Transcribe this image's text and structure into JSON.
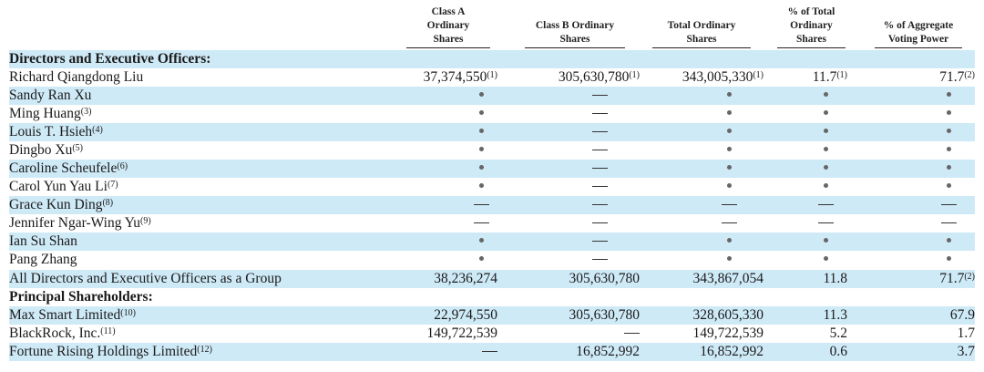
{
  "table": {
    "columns": [
      {
        "key": "class_a",
        "label_lines": [
          "Class A",
          "Ordinary",
          "Shares"
        ]
      },
      {
        "key": "class_b",
        "label_lines": [
          "Class B Ordinary",
          "Shares"
        ]
      },
      {
        "key": "total",
        "label_lines": [
          "Total Ordinary",
          "Shares"
        ]
      },
      {
        "key": "pct_total",
        "label_lines": [
          "% of Total",
          "Ordinary",
          "Shares"
        ]
      },
      {
        "key": "pct_voting",
        "label_lines": [
          "% of Aggregate",
          "Voting Power"
        ]
      }
    ],
    "sections": {
      "directors": "Directors and Executive Officers:",
      "principal": "Principal Shareholders:"
    },
    "rows": [
      {
        "name": "Richard Qiangdong Liu",
        "note": "",
        "class_a": "37,374,550",
        "class_a_note": "(1)",
        "class_b": "305,630,780",
        "class_b_note": "(1)",
        "total": "343,005,330",
        "total_note": "(1)",
        "pct_total": "11.7",
        "pct_total_note": "(1)",
        "pct_voting": "71.7",
        "pct_voting_note": "(2)"
      },
      {
        "name": "Sandy Ran Xu",
        "note": "",
        "class_a": "*",
        "class_b": "—",
        "total": "*",
        "pct_total": "*",
        "pct_voting": "*"
      },
      {
        "name": "Ming Huang",
        "note": "(3)",
        "class_a": "*",
        "class_b": "—",
        "total": "*",
        "pct_total": "*",
        "pct_voting": "*"
      },
      {
        "name": "Louis T. Hsieh",
        "note": "(4)",
        "class_a": "*",
        "class_b": "—",
        "total": "*",
        "pct_total": "*",
        "pct_voting": "*"
      },
      {
        "name": "Dingbo Xu",
        "note": "(5)",
        "class_a": "*",
        "class_b": "—",
        "total": "*",
        "pct_total": "*",
        "pct_voting": "*"
      },
      {
        "name": "Caroline Scheufele",
        "note": "(6)",
        "class_a": "*",
        "class_b": "—",
        "total": "*",
        "pct_total": "*",
        "pct_voting": "*"
      },
      {
        "name": "Carol Yun Yau Li",
        "note": "(7)",
        "class_a": "*",
        "class_b": "—",
        "total": "*",
        "pct_total": "*",
        "pct_voting": "*"
      },
      {
        "name": "Grace Kun Ding",
        "note": "(8)",
        "class_a": "—",
        "class_b": "—",
        "total": "—",
        "pct_total": "—",
        "pct_voting": "—"
      },
      {
        "name": "Jennifer Ngar-Wing Yu",
        "note": "(9)",
        "class_a": "—",
        "class_b": "—",
        "total": "—",
        "pct_total": "—",
        "pct_voting": "—"
      },
      {
        "name": "Ian Su Shan",
        "note": "",
        "class_a": "*",
        "class_b": "—",
        "total": "*",
        "pct_total": "*",
        "pct_voting": "*"
      },
      {
        "name": "Pang Zhang",
        "note": "",
        "class_a": "*",
        "class_b": "—",
        "total": "*",
        "pct_total": "*",
        "pct_voting": "*"
      },
      {
        "name": "All Directors and Executive Officers as a Group",
        "note": "",
        "class_a": "38,236,274",
        "class_b": "305,630,780",
        "total": "343,867,054",
        "pct_total": "11.8",
        "pct_voting": "71.7",
        "pct_voting_note": "(2)"
      },
      {
        "name": "Max Smart Limited",
        "note": "(10)",
        "class_a": "22,974,550",
        "class_b": "305,630,780",
        "total": "328,605,330",
        "pct_total": "11.3",
        "pct_voting": "67.9"
      },
      {
        "name": "BlackRock, Inc.",
        "note": "(11)",
        "class_a": "149,722,539",
        "class_b": "—",
        "total": "149,722,539",
        "pct_total": "5.2",
        "pct_voting": "1.7"
      },
      {
        "name": "Fortune Rising Holdings Limited",
        "note": "(12)",
        "class_a": "—",
        "class_b": "16,852,992",
        "total": "16,852,992",
        "pct_total": "0.6",
        "pct_voting": "3.7"
      }
    ]
  },
  "colors": {
    "row_band": "#cfeaf7",
    "text": "#1a1a1a"
  }
}
